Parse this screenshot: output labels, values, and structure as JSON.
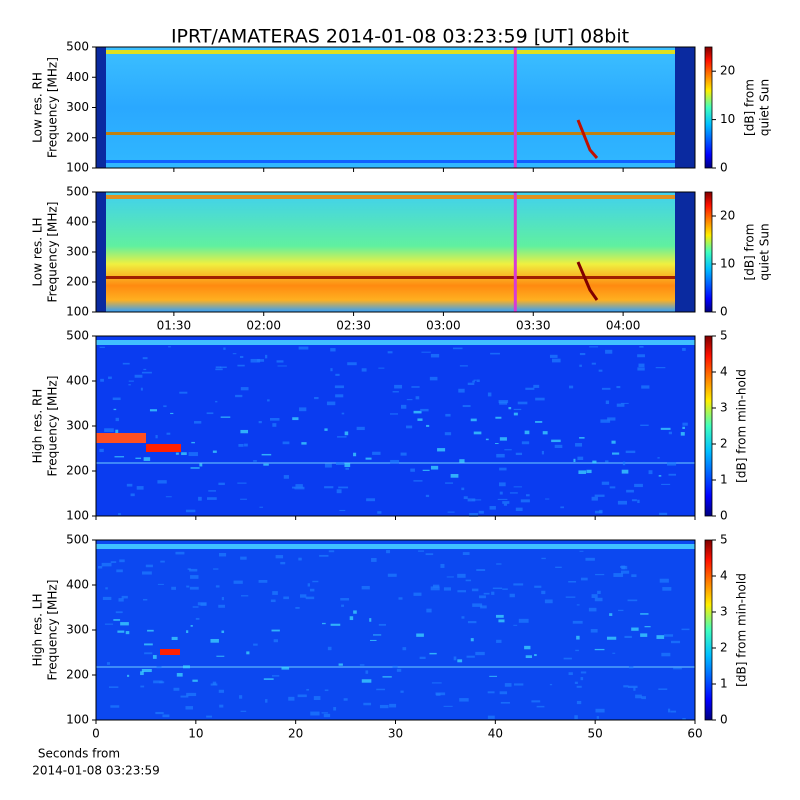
{
  "title": "IPRT/AMATERAS 2014-01-08 03:23:59 [UT]   08bit",
  "x_label": [
    "Seconds from",
    "2014-01-08 03:23:59"
  ],
  "chart_data": [
    {
      "type": "spectrogram",
      "y_label": [
        "Low res. RH",
        "Frequency [MHz]"
      ],
      "ylim": [
        100,
        500
      ],
      "yticks": [
        100,
        200,
        300,
        400,
        500
      ],
      "xlim": [
        64,
        264
      ],
      "marker_x": 204,
      "marker_color": "#d63ad6",
      "colorbar": {
        "label": [
          "[dB] from",
          "quiet Sun"
        ],
        "lim": [
          0,
          25
        ],
        "ticks": [
          0,
          10,
          20
        ]
      }
    },
    {
      "type": "spectrogram",
      "y_label": [
        "Low res. LH",
        "Frequency [MHz]"
      ],
      "ylim": [
        100,
        500
      ],
      "yticks": [
        100,
        200,
        300,
        400,
        500
      ],
      "xlim": [
        64,
        264
      ],
      "marker_x": 204,
      "marker_color": "#d63ad6",
      "xticks": [
        {
          "value": 90,
          "label": "01:30"
        },
        {
          "value": 120,
          "label": "02:00"
        },
        {
          "value": 150,
          "label": "02:30"
        },
        {
          "value": 180,
          "label": "03:00"
        },
        {
          "value": 210,
          "label": "03:30"
        },
        {
          "value": 240,
          "label": "04:00"
        }
      ],
      "colorbar": {
        "label": [
          "[dB] from",
          "quiet Sun"
        ],
        "lim": [
          0,
          25
        ],
        "ticks": [
          0,
          10,
          20
        ]
      }
    },
    {
      "type": "spectrogram",
      "y_label": [
        "High res. RH",
        "Frequency [MHz]"
      ],
      "ylim": [
        100,
        500
      ],
      "yticks": [
        100,
        200,
        300,
        400,
        500
      ],
      "xlim": [
        0,
        60
      ],
      "colorbar": {
        "label": [
          "[dB] from min-hold"
        ],
        "lim": [
          0,
          5
        ],
        "ticks": [
          0,
          1,
          2,
          3,
          4,
          5
        ]
      }
    },
    {
      "type": "spectrogram",
      "y_label": [
        "High res. LH",
        "Frequency [MHz]"
      ],
      "ylim": [
        100,
        500
      ],
      "yticks": [
        100,
        200,
        300,
        400,
        500
      ],
      "xlim": [
        0,
        60
      ],
      "xticks": [
        0,
        10,
        20,
        30,
        40,
        50,
        60
      ],
      "colorbar": {
        "label": [
          "[dB] from min-hold"
        ],
        "lim": [
          0,
          5
        ],
        "ticks": [
          0,
          1,
          2,
          3,
          4,
          5
        ]
      }
    }
  ]
}
